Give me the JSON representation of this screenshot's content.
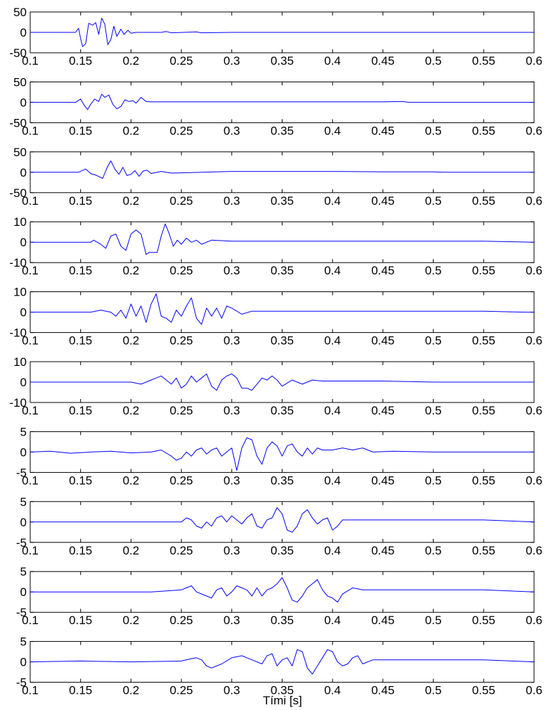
{
  "figure": {
    "xlabel": "Tími [s]",
    "trace_color": "#0000ff",
    "axis_color": "#000000",
    "background": "#ffffff"
  },
  "chart_data": [
    {
      "type": "line",
      "xlim": [
        0.1,
        0.6
      ],
      "ylim": [
        -50,
        50
      ],
      "yticks": [
        -50,
        0,
        50
      ],
      "xticks": [
        0.1,
        0.15,
        0.2,
        0.25,
        0.3,
        0.35,
        0.4,
        0.45,
        0.5,
        0.55,
        0.6
      ],
      "grid": false,
      "series": [
        {
          "x": [
            0.1,
            0.145,
            0.148,
            0.15,
            0.152,
            0.155,
            0.158,
            0.162,
            0.165,
            0.168,
            0.171,
            0.174,
            0.177,
            0.18,
            0.183,
            0.186,
            0.19,
            0.193,
            0.197,
            0.2,
            0.205,
            0.23,
            0.235,
            0.24,
            0.265,
            0.27,
            0.3,
            0.6
          ],
          "y": [
            0,
            0,
            10,
            -15,
            -35,
            -28,
            22,
            18,
            24,
            -5,
            35,
            20,
            -30,
            -18,
            15,
            -10,
            8,
            -5,
            5,
            -2,
            0,
            0,
            2,
            -1,
            1,
            -1,
            0,
            0
          ]
        }
      ]
    },
    {
      "type": "line",
      "xlim": [
        0.1,
        0.6
      ],
      "ylim": [
        -50,
        50
      ],
      "yticks": [
        -50,
        0,
        50
      ],
      "xticks": [
        0.1,
        0.15,
        0.2,
        0.25,
        0.3,
        0.35,
        0.4,
        0.45,
        0.5,
        0.55,
        0.6
      ],
      "grid": false,
      "series": [
        {
          "x": [
            0.1,
            0.145,
            0.15,
            0.153,
            0.157,
            0.16,
            0.164,
            0.168,
            0.171,
            0.174,
            0.178,
            0.182,
            0.186,
            0.19,
            0.194,
            0.198,
            0.202,
            0.205,
            0.21,
            0.215,
            0.22,
            0.25,
            0.3,
            0.35,
            0.4,
            0.45,
            0.47,
            0.475,
            0.5,
            0.6
          ],
          "y": [
            0,
            0,
            8,
            -5,
            -18,
            -5,
            8,
            2,
            20,
            12,
            18,
            -5,
            -16,
            -10,
            6,
            2,
            4,
            -2,
            12,
            2,
            1,
            1,
            1,
            1,
            1,
            1,
            2,
            0,
            0,
            0
          ]
        }
      ]
    },
    {
      "type": "line",
      "xlim": [
        0.1,
        0.6
      ],
      "ylim": [
        -50,
        50
      ],
      "yticks": [
        -50,
        0,
        50
      ],
      "xticks": [
        0.1,
        0.15,
        0.2,
        0.25,
        0.3,
        0.35,
        0.4,
        0.45,
        0.5,
        0.55,
        0.6
      ],
      "grid": false,
      "series": [
        {
          "x": [
            0.1,
            0.148,
            0.155,
            0.16,
            0.166,
            0.172,
            0.176,
            0.18,
            0.184,
            0.188,
            0.192,
            0.196,
            0.2,
            0.204,
            0.208,
            0.212,
            0.216,
            0.22,
            0.23,
            0.24,
            0.3,
            0.4,
            0.45,
            0.5,
            0.51,
            0.6
          ],
          "y": [
            0,
            0,
            8,
            -3,
            -8,
            -15,
            10,
            28,
            8,
            -5,
            12,
            -8,
            -5,
            4,
            -10,
            3,
            5,
            -3,
            2,
            -2,
            2,
            2,
            1,
            1,
            0,
            0
          ]
        }
      ]
    },
    {
      "type": "line",
      "xlim": [
        0.1,
        0.6
      ],
      "ylim": [
        -10,
        10
      ],
      "yticks": [
        -10,
        0,
        10
      ],
      "xticks": [
        0.1,
        0.15,
        0.2,
        0.25,
        0.3,
        0.35,
        0.4,
        0.45,
        0.5,
        0.55,
        0.6
      ],
      "grid": false,
      "series": [
        {
          "x": [
            0.1,
            0.16,
            0.163,
            0.17,
            0.175,
            0.18,
            0.185,
            0.19,
            0.195,
            0.2,
            0.205,
            0.21,
            0.215,
            0.218,
            0.222,
            0.226,
            0.23,
            0.234,
            0.238,
            0.242,
            0.246,
            0.25,
            0.255,
            0.26,
            0.265,
            0.27,
            0.28,
            0.3,
            0.35,
            0.4,
            0.45,
            0.5,
            0.55,
            0.6
          ],
          "y": [
            0,
            0,
            1,
            -1,
            -3,
            3,
            4,
            -2,
            -4,
            4,
            6,
            4,
            -6,
            -5,
            -5,
            -5,
            3,
            9,
            4,
            -2,
            1,
            -1,
            2,
            0,
            1,
            -1,
            1,
            0.5,
            0.5,
            0.5,
            0.5,
            0.5,
            0.5,
            0
          ]
        }
      ]
    },
    {
      "type": "line",
      "xlim": [
        0.1,
        0.6
      ],
      "ylim": [
        -10,
        10
      ],
      "yticks": [
        -10,
        0,
        10
      ],
      "xticks": [
        0.1,
        0.15,
        0.2,
        0.25,
        0.3,
        0.35,
        0.4,
        0.45,
        0.5,
        0.55,
        0.6
      ],
      "grid": false,
      "series": [
        {
          "x": [
            0.1,
            0.16,
            0.17,
            0.18,
            0.185,
            0.19,
            0.195,
            0.2,
            0.205,
            0.21,
            0.215,
            0.22,
            0.225,
            0.23,
            0.235,
            0.24,
            0.245,
            0.25,
            0.255,
            0.26,
            0.265,
            0.27,
            0.275,
            0.28,
            0.285,
            0.29,
            0.295,
            0.3,
            0.31,
            0.32,
            0.35,
            0.4,
            0.45,
            0.5,
            0.55,
            0.59,
            0.6
          ],
          "y": [
            0,
            0,
            1,
            0,
            -2,
            1,
            -3,
            4,
            -2,
            3,
            -5,
            4,
            9,
            -2,
            -3,
            -5,
            1,
            -2,
            3,
            7,
            -3,
            -6,
            2,
            -2,
            2,
            -3,
            3,
            2,
            -1,
            0.5,
            0.5,
            0.5,
            0.5,
            0.5,
            0.5,
            0,
            0
          ]
        }
      ]
    },
    {
      "type": "line",
      "xlim": [
        0.1,
        0.6
      ],
      "ylim": [
        -10,
        10
      ],
      "yticks": [
        -10,
        0,
        10
      ],
      "xticks": [
        0.1,
        0.15,
        0.2,
        0.25,
        0.3,
        0.35,
        0.4,
        0.45,
        0.5,
        0.55,
        0.6
      ],
      "grid": false,
      "series": [
        {
          "x": [
            0.1,
            0.2,
            0.21,
            0.215,
            0.22,
            0.225,
            0.23,
            0.235,
            0.24,
            0.245,
            0.25,
            0.255,
            0.26,
            0.265,
            0.27,
            0.275,
            0.28,
            0.285,
            0.29,
            0.295,
            0.3,
            0.305,
            0.31,
            0.315,
            0.32,
            0.325,
            0.33,
            0.335,
            0.34,
            0.345,
            0.35,
            0.36,
            0.37,
            0.38,
            0.39,
            0.4,
            0.45,
            0.5,
            0.6
          ],
          "y": [
            0,
            0,
            -1,
            0,
            1,
            2,
            3,
            1,
            -1,
            2,
            -3,
            -1,
            3,
            0,
            2,
            4,
            -2,
            -4,
            1,
            3,
            4,
            2,
            -3,
            -3,
            -4,
            -1,
            2,
            1,
            3,
            1,
            -2,
            1,
            -1,
            1,
            0.5,
            0.5,
            0.5,
            0,
            0
          ]
        }
      ]
    },
    {
      "type": "line",
      "xlim": [
        0.1,
        0.6
      ],
      "ylim": [
        -5,
        5
      ],
      "yticks": [
        -5,
        0,
        5
      ],
      "xticks": [
        0.1,
        0.15,
        0.2,
        0.25,
        0.3,
        0.35,
        0.4,
        0.45,
        0.5,
        0.55,
        0.6
      ],
      "grid": false,
      "series": [
        {
          "x": [
            0.1,
            0.12,
            0.14,
            0.16,
            0.18,
            0.2,
            0.22,
            0.23,
            0.24,
            0.245,
            0.25,
            0.255,
            0.26,
            0.265,
            0.27,
            0.275,
            0.28,
            0.285,
            0.29,
            0.295,
            0.3,
            0.305,
            0.31,
            0.315,
            0.32,
            0.325,
            0.33,
            0.335,
            0.34,
            0.345,
            0.35,
            0.355,
            0.36,
            0.365,
            0.37,
            0.375,
            0.38,
            0.385,
            0.39,
            0.4,
            0.41,
            0.42,
            0.43,
            0.44,
            0.46,
            0.5,
            0.55,
            0.6
          ],
          "y": [
            0,
            0.2,
            -0.3,
            0,
            0.2,
            -0.2,
            0,
            0.5,
            -1,
            -2,
            -1.5,
            0,
            -1,
            0.5,
            1,
            -0.5,
            0.5,
            1,
            -1,
            0,
            1,
            -4.5,
            1,
            3.5,
            3,
            -1,
            -3,
            1,
            2.5,
            1.5,
            -1,
            1.5,
            2,
            0,
            -1,
            1,
            -0.5,
            1,
            0.5,
            0.5,
            1,
            0.5,
            1,
            0,
            0.2,
            0,
            0,
            0
          ]
        }
      ]
    },
    {
      "type": "line",
      "xlim": [
        0.1,
        0.6
      ],
      "ylim": [
        -5,
        5
      ],
      "yticks": [
        -5,
        0,
        5
      ],
      "xticks": [
        0.1,
        0.15,
        0.2,
        0.25,
        0.3,
        0.35,
        0.4,
        0.45,
        0.5,
        0.55,
        0.6
      ],
      "grid": false,
      "series": [
        {
          "x": [
            0.1,
            0.2,
            0.25,
            0.255,
            0.26,
            0.265,
            0.27,
            0.275,
            0.28,
            0.285,
            0.29,
            0.295,
            0.3,
            0.305,
            0.31,
            0.315,
            0.32,
            0.325,
            0.33,
            0.335,
            0.34,
            0.345,
            0.35,
            0.355,
            0.36,
            0.365,
            0.37,
            0.375,
            0.38,
            0.385,
            0.39,
            0.395,
            0.4,
            0.405,
            0.41,
            0.42,
            0.43,
            0.45,
            0.5,
            0.55,
            0.6
          ],
          "y": [
            0,
            0,
            0,
            1,
            0.5,
            -1,
            -1.5,
            0,
            -1,
            1,
            1.5,
            0,
            1.5,
            0.5,
            -0.5,
            1,
            2,
            -1,
            -1.5,
            0.5,
            1,
            3.5,
            2,
            -2,
            -2.5,
            -1,
            2,
            3,
            1,
            -0.5,
            0.5,
            1,
            -2,
            -1,
            0.5,
            0.5,
            0.5,
            0.5,
            0.5,
            0.5,
            0
          ]
        }
      ]
    },
    {
      "type": "line",
      "xlim": [
        0.1,
        0.6
      ],
      "ylim": [
        -5,
        5
      ],
      "yticks": [
        -5,
        0,
        5
      ],
      "xticks": [
        0.1,
        0.15,
        0.2,
        0.25,
        0.3,
        0.35,
        0.4,
        0.45,
        0.5,
        0.55,
        0.6
      ],
      "grid": false,
      "series": [
        {
          "x": [
            0.1,
            0.22,
            0.25,
            0.255,
            0.26,
            0.265,
            0.27,
            0.275,
            0.28,
            0.285,
            0.29,
            0.295,
            0.3,
            0.305,
            0.31,
            0.315,
            0.32,
            0.325,
            0.33,
            0.335,
            0.34,
            0.345,
            0.35,
            0.355,
            0.36,
            0.365,
            0.37,
            0.375,
            0.38,
            0.385,
            0.39,
            0.395,
            0.4,
            0.405,
            0.41,
            0.42,
            0.43,
            0.45,
            0.5,
            0.55,
            0.6
          ],
          "y": [
            0,
            0,
            0.5,
            1,
            1.5,
            0,
            -0.5,
            -1,
            -1.5,
            0.5,
            1,
            -1,
            0,
            1.5,
            1,
            0.5,
            -1,
            1,
            -1,
            0.5,
            1,
            2,
            3.5,
            1,
            -2,
            -2.5,
            -1,
            1,
            2,
            3,
            0.5,
            -1,
            -1.5,
            -2.5,
            -0.5,
            1,
            0.5,
            0.5,
            0.5,
            0.5,
            0
          ]
        }
      ]
    },
    {
      "type": "line",
      "xlim": [
        0.1,
        0.6
      ],
      "ylim": [
        -5,
        5
      ],
      "yticks": [
        -5,
        0,
        5
      ],
      "xticks": [
        0.1,
        0.15,
        0.2,
        0.25,
        0.3,
        0.35,
        0.4,
        0.45,
        0.5,
        0.55,
        0.6
      ],
      "grid": false,
      "series": [
        {
          "x": [
            0.1,
            0.15,
            0.2,
            0.25,
            0.26,
            0.265,
            0.27,
            0.275,
            0.28,
            0.29,
            0.3,
            0.31,
            0.32,
            0.33,
            0.335,
            0.34,
            0.345,
            0.35,
            0.355,
            0.36,
            0.365,
            0.37,
            0.375,
            0.38,
            0.385,
            0.39,
            0.395,
            0.4,
            0.405,
            0.41,
            0.415,
            0.42,
            0.425,
            0.43,
            0.44,
            0.45,
            0.5,
            0.55,
            0.6
          ],
          "y": [
            0,
            0.2,
            0,
            0.2,
            0.8,
            1,
            0.5,
            -1,
            -1.5,
            -0.5,
            1,
            1.5,
            0.5,
            -0.5,
            1.5,
            2,
            -1,
            0.5,
            1,
            -1,
            3,
            2.5,
            -1.5,
            -3,
            -1,
            1,
            3,
            2.5,
            0,
            -1,
            -0.5,
            1,
            1.5,
            -0.5,
            0.5,
            0.5,
            0.5,
            0.5,
            0
          ]
        }
      ]
    }
  ]
}
